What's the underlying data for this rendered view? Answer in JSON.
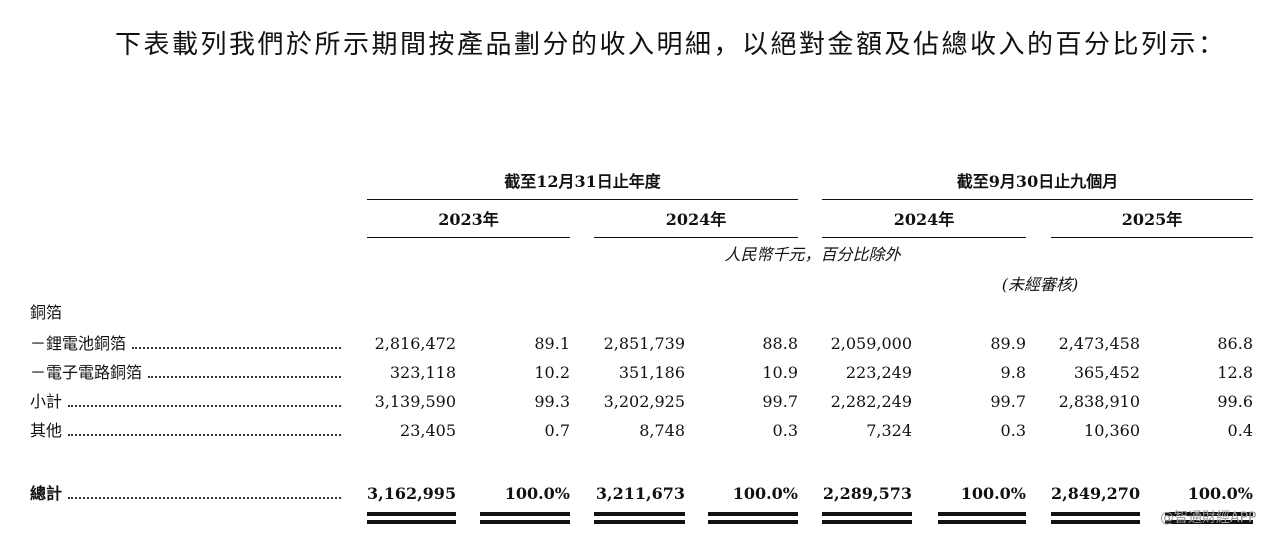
{
  "intro": "下表載列我們於所示期間按產品劃分的收入明細，以絕對金額及佔總收入的百分比列示：",
  "table": {
    "group_headers": [
      "截至12月31日止年度",
      "截至9月30日止九個月"
    ],
    "years": [
      "2023年",
      "2024年",
      "2024年",
      "2025年"
    ],
    "unit_note": "人民幣千元，百分比除外",
    "unaudited_note": "(未經審核)",
    "rows": [
      {
        "label": "銅箔"
      },
      {
        "label": "－鋰電池銅箔",
        "values": [
          "2,816,472",
          "89.1",
          "2,851,739",
          "88.8",
          "2,059,000",
          "89.9",
          "2,473,458",
          "86.8"
        ]
      },
      {
        "label": "－電子電路銅箔",
        "values": [
          "323,118",
          "10.2",
          "351,186",
          "10.9",
          "223,249",
          "9.8",
          "365,452",
          "12.8"
        ]
      },
      {
        "label": "小計",
        "values": [
          "3,139,590",
          "99.3",
          "3,202,925",
          "99.7",
          "2,282,249",
          "99.7",
          "2,838,910",
          "99.6"
        ]
      },
      {
        "label": "其他",
        "values": [
          "23,405",
          "0.7",
          "8,748",
          "0.3",
          "7,324",
          "0.3",
          "10,360",
          "0.4"
        ]
      },
      {
        "label": "總計",
        "values": [
          "3,162,995",
          "100.0%",
          "3,211,673",
          "100.0%",
          "2,289,573",
          "100.0%",
          "2,849,270",
          "100.0%"
        ]
      }
    ]
  },
  "watermark": "@智通財經APP"
}
